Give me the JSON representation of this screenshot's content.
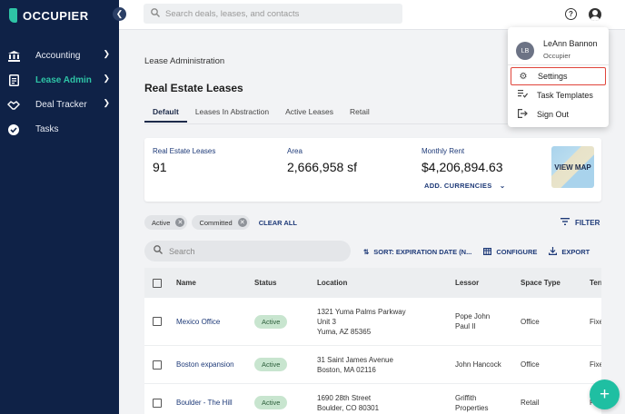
{
  "app": {
    "brand": "OCCUPIER",
    "accent": "#2ec4a6",
    "sidebar_bg": "#0f2247"
  },
  "sidebar": {
    "items": [
      {
        "label": "Accounting",
        "icon": "bank-icon",
        "chevron": true
      },
      {
        "label": "Lease Admin",
        "icon": "document-icon",
        "chevron": true,
        "active": true
      },
      {
        "label": "Deal Tracker",
        "icon": "handshake-icon",
        "chevron": true
      },
      {
        "label": "Tasks",
        "icon": "check-circle-icon",
        "chevron": false
      }
    ]
  },
  "topbar": {
    "search_placeholder": "Search deals, leases, and contacts"
  },
  "main": {
    "breadcrumb": "Lease Administration",
    "title": "Real Estate Leases",
    "tabs": [
      "Default",
      "Leases In Abstraction",
      "Active Leases",
      "Retail"
    ],
    "summary": {
      "leases_label": "Real Estate Leases",
      "leases_value": "91",
      "area_label": "Area",
      "area_value": "2,666,958 sf",
      "rent_label": "Monthly Rent",
      "rent_value": "$4,206,894.63",
      "currencies_label": "ADD. CURRENCIES",
      "map_label": "VIEW MAP"
    },
    "chips": [
      "Active",
      "Committed"
    ],
    "clear_all": "CLEAR ALL",
    "filter": "FILTER",
    "table_search_placeholder": "Search",
    "toolbar": {
      "sort": "SORT: EXPIRATION DATE (N...",
      "configure": "CONFIGURE",
      "export": "EXPORT"
    },
    "table": {
      "headers": [
        "Name",
        "Status",
        "Location",
        "Lessor",
        "Space Type",
        "Terr"
      ],
      "rows": [
        {
          "name": "Mexico Office",
          "status": "Active",
          "loc1": "1321 Yuma Palms Parkway",
          "loc2": "Unit 3",
          "loc3": "Yuma, AZ 85365",
          "lessor1": "Pope John",
          "lessor2": "Paul II",
          "space": "Office",
          "term": "Fixe"
        },
        {
          "name": "Boston expansion",
          "status": "Active",
          "loc1": "31 Saint James Avenue",
          "loc2": "Boston, MA 02116",
          "loc3": "",
          "lessor1": "John Hancock",
          "lessor2": "",
          "space": "Office",
          "term": "Fixe"
        },
        {
          "name": "Boulder - The Hill",
          "status": "Active",
          "loc1": "1690 28th Street",
          "loc2": "Boulder, CO 80301",
          "loc3": "",
          "lessor1": "Griffith",
          "lessor2": "Properties",
          "space": "Retail",
          "term": "Fixe"
        }
      ]
    }
  },
  "user_menu": {
    "initials": "LB",
    "name": "LeAnn Bannon",
    "org": "Occupier",
    "items": [
      "Settings",
      "Task Templates",
      "Sign Out"
    ]
  }
}
